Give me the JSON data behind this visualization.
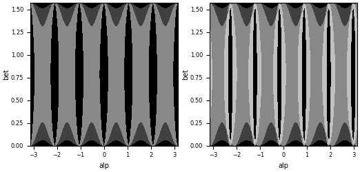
{
  "xlim": [
    -3.14159265,
    3.14159265
  ],
  "ylim": [
    0.0,
    1.5707963
  ],
  "xlabel": "alp",
  "ylabel": "bet",
  "xticks": [
    -3,
    -2,
    -1,
    0,
    1,
    2,
    3
  ],
  "yticks": [
    0,
    0.25,
    0.5,
    0.75,
    1.0,
    1.25,
    1.5
  ],
  "figsize": [
    5.22,
    2.5
  ],
  "dpi": 100,
  "bg_color": "#000000",
  "colors_left": [
    "#000000",
    "#3c3c3c",
    "#787878",
    "#b4b4b4",
    "#ffffff"
  ],
  "colors_right": [
    "#000000",
    "#3c3c3c",
    "#787878",
    "#b4b4b4",
    "#ffffff"
  ],
  "N": 800
}
